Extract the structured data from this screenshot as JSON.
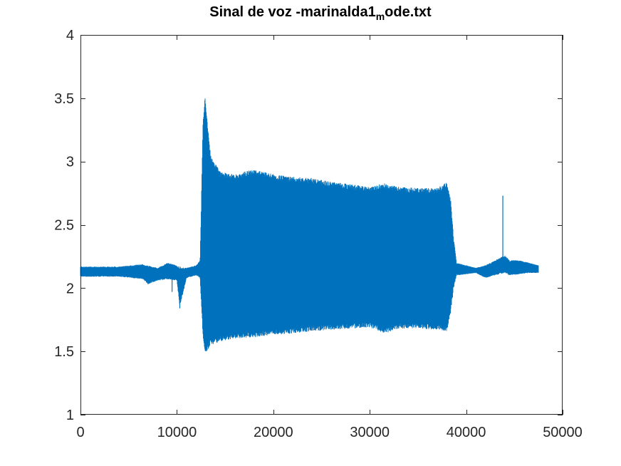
{
  "chart_data": {
    "type": "line",
    "title_main": "Sinal de voz -marinalda1",
    "title_sub": "m",
    "title_end": "ode.txt",
    "xlabel": "",
    "ylabel": "",
    "xlim": [
      0,
      50000
    ],
    "ylim": [
      1,
      4
    ],
    "xticks": [
      0,
      10000,
      20000,
      30000,
      40000,
      50000
    ],
    "xtick_labels": [
      "0",
      "10000",
      "20000",
      "30000",
      "40000",
      "50000"
    ],
    "yticks": [
      1,
      1.5,
      2,
      2.5,
      3,
      3.5,
      4
    ],
    "ytick_labels": [
      "1",
      "1.5",
      "2",
      "2.5",
      "3",
      "3.5",
      "4"
    ],
    "grid": false,
    "legend": "none",
    "series": [
      {
        "color": "#0072bd",
        "samples": 47500,
        "envelope": {
          "x": [
            0,
            2000,
            4000,
            6500,
            7000,
            8000,
            9000,
            10000,
            10300,
            11000,
            12000,
            12400,
            12700,
            12900,
            13100,
            13500,
            14500,
            16000,
            18000,
            20000,
            22000,
            24000,
            26000,
            28000,
            30000,
            31500,
            33000,
            35000,
            37000,
            38000,
            38400,
            38700,
            39000,
            41000,
            42000,
            43000,
            44000,
            44500,
            45500,
            46500,
            47500
          ],
          "upper": [
            2.17,
            2.17,
            2.17,
            2.19,
            2.18,
            2.16,
            2.2,
            2.18,
            2.17,
            2.16,
            2.18,
            2.22,
            3.3,
            3.52,
            3.35,
            3.05,
            2.92,
            2.9,
            2.94,
            2.9,
            2.88,
            2.87,
            2.84,
            2.82,
            2.8,
            2.83,
            2.8,
            2.79,
            2.79,
            2.84,
            2.7,
            2.4,
            2.2,
            2.16,
            2.18,
            2.22,
            2.26,
            2.22,
            2.22,
            2.2,
            2.18
          ],
          "lower": [
            2.09,
            2.09,
            2.09,
            2.07,
            2.03,
            2.06,
            2.07,
            2.06,
            1.85,
            2.08,
            2.1,
            2.08,
            1.62,
            1.48,
            1.5,
            1.55,
            1.58,
            1.6,
            1.61,
            1.63,
            1.64,
            1.66,
            1.67,
            1.68,
            1.69,
            1.64,
            1.68,
            1.68,
            1.67,
            1.66,
            1.8,
            2.0,
            2.1,
            2.12,
            2.08,
            2.1,
            2.12,
            2.1,
            2.11,
            2.12,
            2.12
          ]
        },
        "spikes": [
          {
            "x": 9500,
            "y": 1.97
          },
          {
            "x": 10300,
            "y": 1.84
          },
          {
            "x": 43800,
            "y": 2.73
          }
        ]
      }
    ]
  }
}
